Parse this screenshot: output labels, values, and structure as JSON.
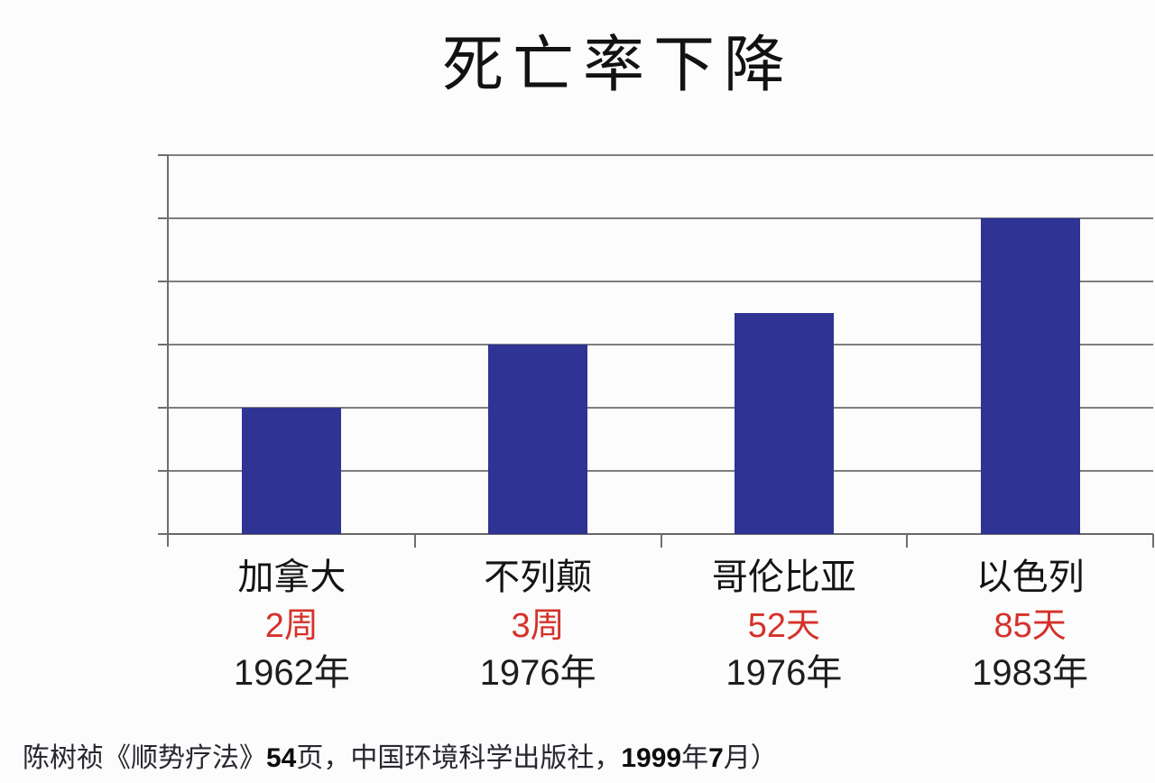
{
  "chart_data": {
    "type": "bar",
    "title": "死亡率下降",
    "categories": [
      "加拿大",
      "不列颠",
      "哥伦比亚",
      "以色列"
    ],
    "values": [
      2,
      3,
      3.5,
      5
    ],
    "durations": [
      "2周",
      "3周",
      "52天",
      "85天"
    ],
    "years": [
      "1962年",
      "1976年",
      "1976年",
      "1983年"
    ],
    "ylim": [
      0,
      6
    ],
    "gridline_step": 1,
    "grid": true,
    "legend": "none",
    "y_tick_labels": [],
    "xlabel": "",
    "ylabel": "",
    "bar_color": "#2e3394",
    "duration_color": "#d4322b"
  },
  "caption": {
    "segments": [
      {
        "text": "陈树祯《顺势疗法》",
        "bold": false
      },
      {
        "text": "54",
        "bold": true
      },
      {
        "text": "页，中国环境科学出版社，",
        "bold": false
      },
      {
        "text": "1999",
        "bold": true
      },
      {
        "text": "年",
        "bold": false
      },
      {
        "text": "7",
        "bold": true
      },
      {
        "text": "月）",
        "bold": false
      }
    ]
  }
}
